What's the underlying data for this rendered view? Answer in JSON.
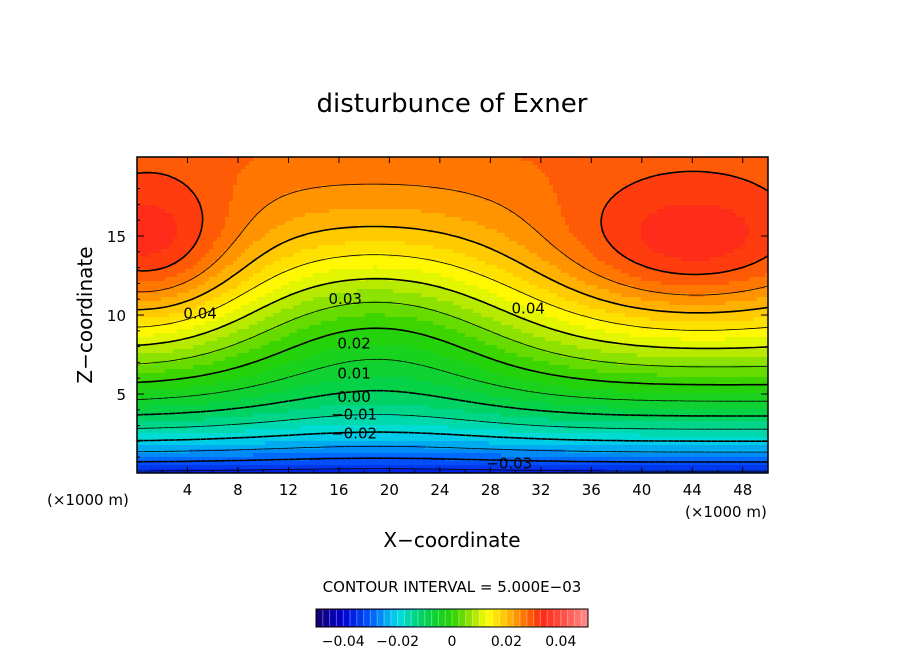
{
  "chart_data": {
    "type": "heatmap",
    "subtype": "filled-contour",
    "title": "disturbunce of Exner",
    "xlabel": "X−coordinate",
    "ylabel": "Z−coordinate",
    "x_unit_left": "(×1000 m)",
    "x_unit_right": "(×1000 m)",
    "xlim": [
      0,
      50
    ],
    "ylim": [
      0,
      20
    ],
    "x_ticks": [
      4,
      8,
      12,
      16,
      20,
      24,
      28,
      32,
      36,
      40,
      44,
      48
    ],
    "y_ticks": [
      5,
      10,
      15
    ],
    "contour_interval_text": "CONTOUR INTERVAL = 5.000E−03",
    "contour_labels": [
      {
        "text": "0.04",
        "x": 5,
        "z": 10.1
      },
      {
        "text": "0.03",
        "x": 16.5,
        "z": 11.0
      },
      {
        "text": "0.04",
        "x": 31,
        "z": 10.4
      },
      {
        "text": "0.02",
        "x": 17.2,
        "z": 8.2
      },
      {
        "text": "0.01",
        "x": 17.2,
        "z": 6.3
      },
      {
        "text": "0.00",
        "x": 17.2,
        "z": 4.8
      },
      {
        "text": "−0.01",
        "x": 17.2,
        "z": 3.7
      },
      {
        "text": "−0.02",
        "x": 17.2,
        "z": 2.5
      },
      {
        "text": "−0.03",
        "x": 29.5,
        "z": 0.6
      }
    ],
    "field_description": {
      "max_regions": [
        {
          "x": 1.5,
          "z": 14
        },
        {
          "x": 44,
          "z": 14
        }
      ],
      "saddle": {
        "x": 18,
        "z": 14.5
      },
      "min_region": {
        "x": 20,
        "z": 0
      }
    },
    "colorbar": {
      "range": [
        -0.05,
        0.05
      ],
      "tick_labels": [
        "−0.04",
        "−0.02",
        "0",
        "0.02",
        "0.04"
      ],
      "tick_values": [
        -0.04,
        -0.02,
        0,
        0.02,
        0.04
      ]
    },
    "colormap": [
      "#0000c8",
      "#0066ff",
      "#00e6e6",
      "#00d23c",
      "#a8e600",
      "#ffff00",
      "#ffb400",
      "#ff6400",
      "#ff2d2d",
      "#ff8080"
    ]
  }
}
